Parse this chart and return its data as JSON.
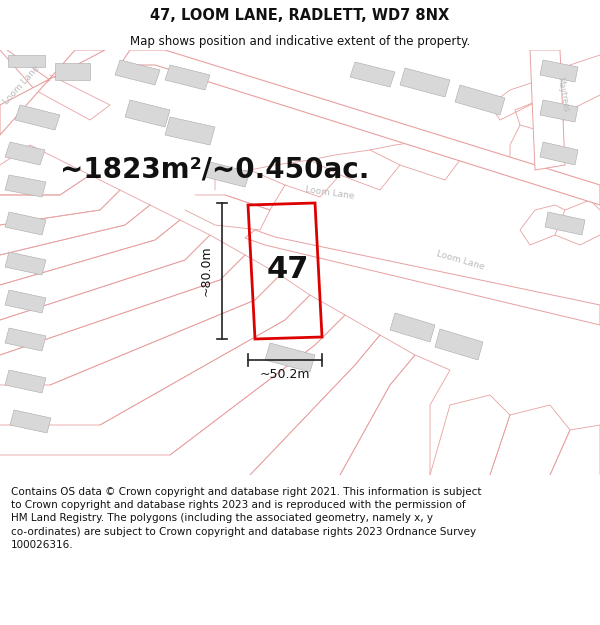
{
  "title": "47, LOOM LANE, RADLETT, WD7 8NX",
  "subtitle": "Map shows position and indicative extent of the property.",
  "area_text": "~1823m²/~0.450ac.",
  "label_47": "47",
  "dim_width": "~50.2m",
  "dim_height": "~80.0m",
  "footer_line1": "Contains OS data © Crown copyright and database right 2021. This information is subject",
  "footer_line2": "to Crown copyright and database rights 2023 and is reproduced with the permission of",
  "footer_line3": "HM Land Registry. The polygons (including the associated geometry, namely x, y",
  "footer_line4": "co-ordinates) are subject to Crown copyright and database rights 2023 Ordnance Survey",
  "footer_line5": "100026316.",
  "map_bg": "#ffffff",
  "road_fill": "#ffffff",
  "building_fill": "#d8d8d8",
  "road_line_color": "#e8a0a0",
  "plot_line_color": "#dd0000",
  "dim_line_color": "#222222",
  "text_color": "#111111",
  "label_color": "#bbbbbb",
  "title_fontsize": 10.5,
  "subtitle_fontsize": 8.5,
  "area_fontsize": 20,
  "label_fontsize": 22,
  "dim_fontsize": 9,
  "footer_fontsize": 7.5
}
